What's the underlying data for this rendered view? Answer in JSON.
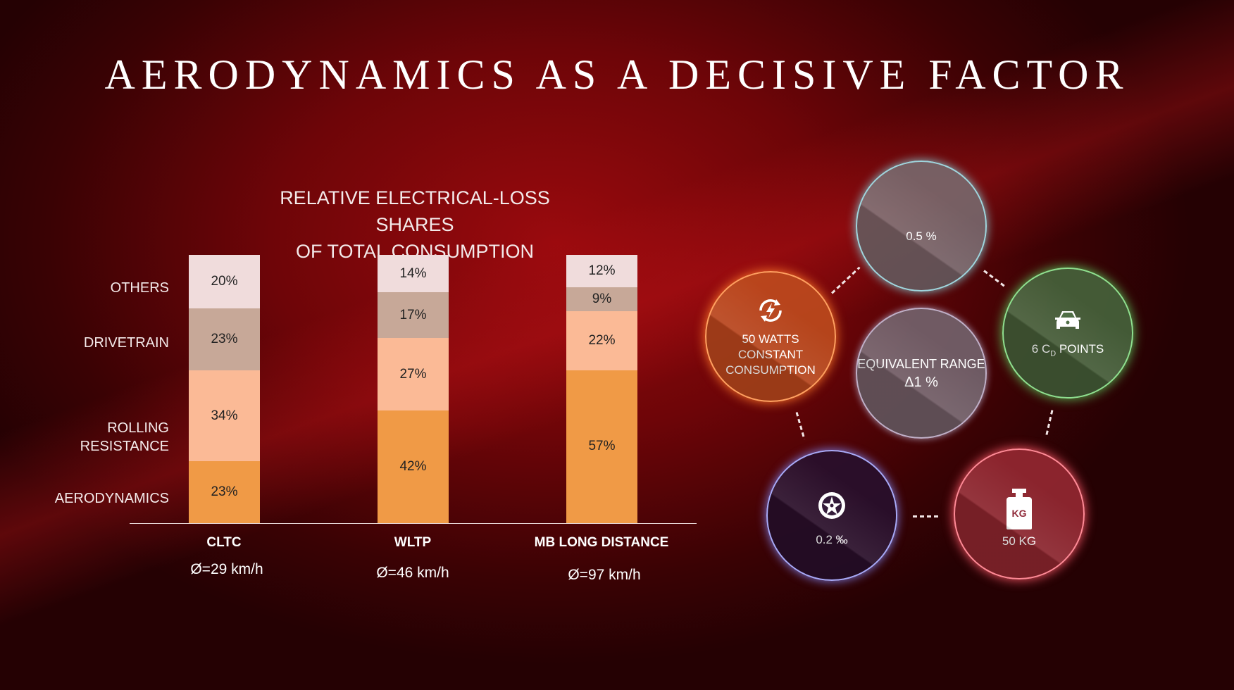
{
  "title": "AERODYNAMICS AS A DECISIVE FACTOR",
  "chart_data": {
    "type": "bar",
    "stacked": true,
    "title": [
      "RELATIVE ELECTRICAL-LOSS SHARES",
      "OF TOTAL CONSUMPTION"
    ],
    "categories": [
      "CLTC",
      "WLTP",
      "MB LONG DISTANCE"
    ],
    "speeds": [
      "Ø=29 km/h",
      "Ø=46 km/h",
      "Ø=97 km/h"
    ],
    "row_labels": [
      "OTHERS",
      "DRIVETRAIN",
      "ROLLING RESISTANCE",
      "AERODYNAMICS"
    ],
    "row_label_lines": {
      "rolling": [
        "ROLLING",
        "RESISTANCE"
      ]
    },
    "series": [
      {
        "name": "AERODYNAMICS",
        "color": "#f09a46",
        "values": [
          23,
          42,
          57
        ]
      },
      {
        "name": "ROLLING RESISTANCE",
        "color": "#fbba96",
        "values": [
          34,
          27,
          22
        ]
      },
      {
        "name": "DRIVETRAIN",
        "color": "#c7a898",
        "values": [
          23,
          17,
          9
        ]
      },
      {
        "name": "OTHERS",
        "color": "#f0dcdc",
        "values": [
          20,
          14,
          12
        ]
      }
    ],
    "ylim": [
      0,
      100
    ],
    "unit": "%"
  },
  "circles": {
    "top": {
      "text": "0.5 %",
      "color": "#8fc8d0"
    },
    "center": {
      "line1": "EQUIVALENT RANGE",
      "line2": "Δ1 %",
      "color": "#b8a8c0"
    },
    "left": {
      "lines": [
        "50 WATTS",
        "CONSTANT",
        "CONSUMPTION"
      ],
      "icon": "energy-recycle-icon",
      "color": "#ff8a3a"
    },
    "right": {
      "prefix": "6 C",
      "sub": "D",
      "suffix": " POINTS",
      "icon": "car-icon",
      "color": "#7ad07a"
    },
    "bottom_left": {
      "text": "0.2 ‰",
      "icon": "wheel-icon",
      "color": "#9a9cf0"
    },
    "bottom_right": {
      "text": "50 KG",
      "icon": "weight-icon",
      "icon_text": "KG",
      "color": "#ff6a78"
    }
  }
}
